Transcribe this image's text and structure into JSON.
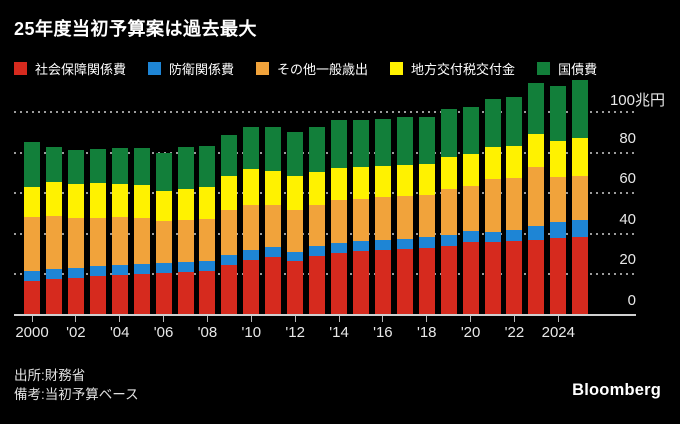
{
  "title": "25年度当初予算案は過去最大",
  "source_line": "出所:財務省",
  "note_line": "備考:当初予算ベース",
  "logo": "Bloomberg",
  "colors": {
    "background": "#000000",
    "text": "#ffffff",
    "axis_text": "#e8e8e8",
    "gridline": "#9c9c9c",
    "axis_line": "#d0d0d0"
  },
  "chart_data": {
    "type": "bar",
    "stacked": true,
    "title": "25年度当初予算案は過去最大",
    "unit": "兆円",
    "legend_position": "top",
    "grid": "horizontal dotted lines at 20/40/60/80/100, behind bars",
    "ylim": [
      0,
      120
    ],
    "x": [
      2000,
      2001,
      2002,
      2003,
      2004,
      2005,
      2006,
      2007,
      2008,
      2009,
      2010,
      2011,
      2012,
      2013,
      2014,
      2015,
      2016,
      2017,
      2018,
      2019,
      2020,
      2021,
      2022,
      2023,
      2024,
      2025
    ],
    "series": [
      {
        "name": "社会保障関係費",
        "color": "#d62a1e",
        "values": [
          16.8,
          17.6,
          18.3,
          19.0,
          19.8,
          20.4,
          20.6,
          21.1,
          21.8,
          24.8,
          27.3,
          28.7,
          26.4,
          29.1,
          30.5,
          31.5,
          32.0,
          32.5,
          33.0,
          34.1,
          35.9,
          35.8,
          36.3,
          36.9,
          37.7,
          38.3
        ]
      },
      {
        "name": "防衛関係費",
        "color": "#1e85d5",
        "values": [
          4.9,
          5.0,
          5.0,
          5.0,
          4.9,
          4.9,
          4.8,
          4.8,
          4.8,
          4.8,
          4.8,
          4.8,
          4.7,
          4.8,
          4.9,
          5.0,
          5.1,
          5.1,
          5.2,
          5.3,
          5.3,
          5.3,
          5.4,
          6.8,
          8.0,
          8.7
        ]
      },
      {
        "name": "その他一般歳出",
        "color": "#f1a33b",
        "values": [
          26.4,
          26.2,
          24.3,
          23.7,
          23.4,
          22.4,
          21.0,
          21.1,
          20.7,
          22.1,
          22.1,
          20.6,
          20.7,
          20.1,
          21.1,
          20.8,
          20.8,
          20.8,
          20.7,
          22.6,
          22.3,
          25.7,
          25.7,
          29.0,
          22.1,
          21.3
        ]
      },
      {
        "name": "地方交付税交付金",
        "color": "#fff200",
        "values": [
          14.9,
          16.8,
          17.0,
          17.4,
          16.5,
          16.1,
          14.6,
          14.9,
          15.6,
          16.6,
          17.5,
          16.8,
          16.6,
          16.4,
          16.1,
          15.5,
          15.3,
          15.6,
          15.5,
          16.0,
          15.8,
          16.0,
          15.9,
          16.4,
          17.8,
          19.1
        ]
      },
      {
        "name": "国債費",
        "color": "#127f3a",
        "values": [
          22.0,
          17.2,
          16.7,
          16.8,
          17.6,
          18.4,
          18.8,
          21.0,
          20.2,
          20.2,
          20.7,
          21.6,
          21.9,
          22.2,
          23.3,
          23.5,
          23.6,
          23.5,
          23.3,
          23.5,
          23.4,
          23.8,
          24.3,
          25.3,
          27.0,
          28.2
        ]
      }
    ],
    "yticks": [
      {
        "value": 0,
        "label": "0"
      },
      {
        "value": 20,
        "label": "20"
      },
      {
        "value": 40,
        "label": "40"
      },
      {
        "value": 60,
        "label": "60"
      },
      {
        "value": 80,
        "label": "80"
      },
      {
        "value": 100,
        "label": "100兆円"
      }
    ],
    "xticks": [
      {
        "year": 2000,
        "label": "2000"
      },
      {
        "year": 2002,
        "label": "'02"
      },
      {
        "year": 2004,
        "label": "'04"
      },
      {
        "year": 2006,
        "label": "'06"
      },
      {
        "year": 2008,
        "label": "'08"
      },
      {
        "year": 2010,
        "label": "'10"
      },
      {
        "year": 2012,
        "label": "'12"
      },
      {
        "year": 2014,
        "label": "'14"
      },
      {
        "year": 2016,
        "label": "'16"
      },
      {
        "year": 2018,
        "label": "'18"
      },
      {
        "year": 2020,
        "label": "'20"
      },
      {
        "year": 2022,
        "label": "'22"
      },
      {
        "year": 2024,
        "label": "2024"
      }
    ]
  }
}
